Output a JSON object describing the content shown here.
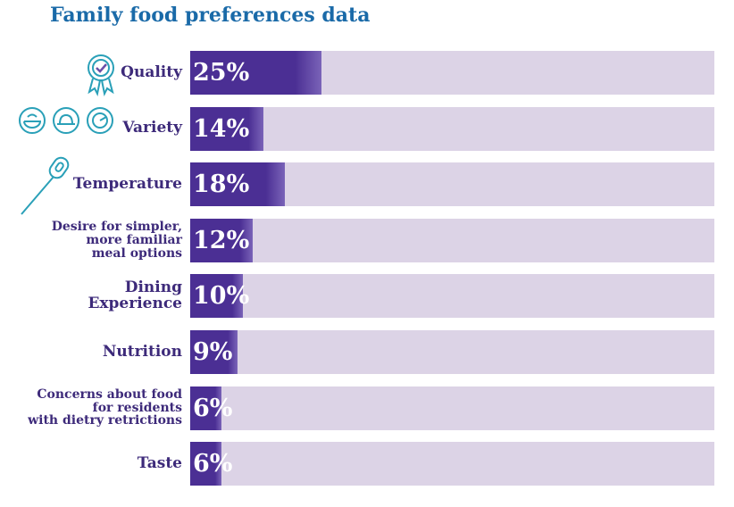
{
  "chart_data": {
    "type": "bar",
    "orientation": "horizontal",
    "title": "Family food preferences data",
    "categories": [
      "Quality",
      "Variety",
      "Temperature",
      "Desire for simpler,\nmore familiar\nmeal options",
      "Dining\nExperience",
      "Nutrition",
      "Concerns about food\nfor residents\nwith dietry retrictions",
      "Taste"
    ],
    "values": [
      25,
      14,
      18,
      12,
      10,
      9,
      6,
      6
    ],
    "value_labels": [
      "25%",
      "14%",
      "18%",
      "12%",
      "10%",
      "9%",
      "6%",
      "6%"
    ],
    "xlim": [
      0,
      100
    ],
    "color": "#4b2f94",
    "track_color": "#dcd3e6"
  }
}
